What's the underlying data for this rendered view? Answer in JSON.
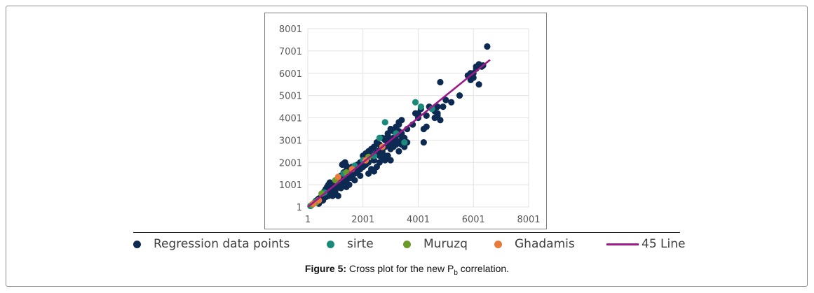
{
  "chart_data": {
    "type": "scatter",
    "xlim": [
      1,
      8001
    ],
    "ylim": [
      1,
      8001
    ],
    "x_ticks": [
      "1",
      "2001",
      "4001",
      "6001",
      "8001"
    ],
    "y_ticks": [
      "1",
      "1001",
      "2001",
      "3001",
      "4001",
      "5001",
      "6001",
      "7001",
      "8001"
    ],
    "grid": true,
    "legend_position": "bottom",
    "series": [
      {
        "name": "Regression data points",
        "color": "#0d2b52",
        "points": [
          [
            100,
            50
          ],
          [
            150,
            100
          ],
          [
            200,
            150
          ],
          [
            250,
            200
          ],
          [
            300,
            280
          ],
          [
            350,
            320
          ],
          [
            400,
            380
          ],
          [
            450,
            400
          ],
          [
            500,
            480
          ],
          [
            550,
            560
          ],
          [
            600,
            600
          ],
          [
            650,
            650
          ],
          [
            700,
            700
          ],
          [
            750,
            720
          ],
          [
            800,
            800
          ],
          [
            820,
            900
          ],
          [
            850,
            780
          ],
          [
            900,
            950
          ],
          [
            950,
            1000
          ],
          [
            1000,
            1050
          ],
          [
            1050,
            1000
          ],
          [
            1100,
            1100
          ],
          [
            1150,
            1150
          ],
          [
            1200,
            1200
          ],
          [
            1250,
            1250
          ],
          [
            1300,
            1300
          ],
          [
            1350,
            1350
          ],
          [
            1400,
            1400
          ],
          [
            1450,
            1500
          ],
          [
            1500,
            1550
          ],
          [
            600,
            700
          ],
          [
            650,
            800
          ],
          [
            700,
            900
          ],
          [
            750,
            1000
          ],
          [
            800,
            1100
          ],
          [
            900,
            800
          ],
          [
            950,
            850
          ],
          [
            1000,
            800
          ],
          [
            1100,
            900
          ],
          [
            1200,
            1000
          ],
          [
            700,
            550
          ],
          [
            800,
            600
          ],
          [
            900,
            700
          ],
          [
            1000,
            750
          ],
          [
            1200,
            850
          ],
          [
            1300,
            1100
          ],
          [
            1400,
            1200
          ],
          [
            1500,
            1300
          ],
          [
            1600,
            1400
          ],
          [
            1700,
            1500
          ],
          [
            1100,
            1300
          ],
          [
            1200,
            1400
          ],
          [
            1300,
            1550
          ],
          [
            1400,
            1650
          ],
          [
            1500,
            1700
          ],
          [
            1600,
            1800
          ],
          [
            1700,
            1850
          ],
          [
            1800,
            1900
          ],
          [
            1900,
            2000
          ],
          [
            2000,
            2100
          ],
          [
            1250,
            1900
          ],
          [
            1300,
            1950
          ],
          [
            1350,
            2000
          ],
          [
            1400,
            1850
          ],
          [
            1650,
            1600
          ],
          [
            1750,
            1650
          ],
          [
            1850,
            1750
          ],
          [
            1950,
            1850
          ],
          [
            2050,
            1950
          ],
          [
            2150,
            2050
          ],
          [
            2100,
            2200
          ],
          [
            2200,
            2250
          ],
          [
            2300,
            2300
          ],
          [
            2400,
            2350
          ],
          [
            2500,
            2450
          ],
          [
            2600,
            2550
          ],
          [
            2700,
            2600
          ],
          [
            2800,
            2700
          ],
          [
            2900,
            2800
          ],
          [
            3000,
            2900
          ],
          [
            2000,
            2300
          ],
          [
            2100,
            2400
          ],
          [
            2200,
            2500
          ],
          [
            2300,
            2600
          ],
          [
            2400,
            2700
          ],
          [
            2500,
            2900
          ],
          [
            2600,
            2800
          ],
          [
            2700,
            3100
          ],
          [
            2800,
            3000
          ],
          [
            2900,
            3200
          ],
          [
            2000,
            1800
          ],
          [
            2100,
            1900
          ],
          [
            2200,
            1500
          ],
          [
            2300,
            1700
          ],
          [
            2400,
            1600
          ],
          [
            2500,
            1800
          ],
          [
            2600,
            2000
          ],
          [
            2700,
            2200
          ],
          [
            2800,
            2100
          ],
          [
            2900,
            2300
          ],
          [
            3000,
            2600
          ],
          [
            3100,
            2700
          ],
          [
            3200,
            2800
          ],
          [
            3300,
            2900
          ],
          [
            3400,
            3000
          ],
          [
            3500,
            3100
          ],
          [
            3100,
            3100
          ],
          [
            3200,
            3300
          ],
          [
            3300,
            3400
          ],
          [
            3400,
            3300
          ],
          [
            3000,
            3500
          ],
          [
            3100,
            3400
          ],
          [
            3200,
            3600
          ],
          [
            3300,
            3800
          ],
          [
            3400,
            3900
          ],
          [
            2900,
            3300
          ],
          [
            3600,
            3500
          ],
          [
            3800,
            3700
          ],
          [
            3900,
            4200
          ],
          [
            4000,
            4000
          ],
          [
            2600,
            2400
          ],
          [
            2700,
            2500
          ],
          [
            2800,
            2300
          ],
          [
            3000,
            2100
          ],
          [
            3300,
            2500
          ],
          [
            3400,
            2800
          ],
          [
            3500,
            2700
          ],
          [
            3600,
            2900
          ],
          [
            3300,
            3700
          ],
          [
            3200,
            3200
          ],
          [
            4200,
            3500
          ],
          [
            4300,
            3600
          ],
          [
            4200,
            2900
          ],
          [
            4300,
            4100
          ],
          [
            4500,
            4400
          ],
          [
            4600,
            4000
          ],
          [
            4700,
            4100
          ],
          [
            4800,
            3900
          ],
          [
            4900,
            4500
          ],
          [
            5000,
            4800
          ],
          [
            4700,
            4500
          ],
          [
            4800,
            5600
          ],
          [
            5200,
            4700
          ],
          [
            5500,
            5000
          ],
          [
            5800,
            5900
          ],
          [
            5900,
            6000
          ],
          [
            6000,
            5800
          ],
          [
            6100,
            6300
          ],
          [
            6200,
            6400
          ],
          [
            6300,
            6300
          ],
          [
            5900,
            5700
          ],
          [
            6000,
            6000
          ],
          [
            6100,
            6200
          ],
          [
            6200,
            5500
          ],
          [
            6350,
            6350
          ],
          [
            6500,
            7200
          ],
          [
            5800,
            5900
          ],
          [
            1000,
            600
          ],
          [
            1100,
            500
          ],
          [
            900,
            500
          ],
          [
            400,
            150
          ],
          [
            450,
            250
          ],
          [
            500,
            350
          ],
          [
            550,
            300
          ],
          [
            650,
            450
          ],
          [
            750,
            500
          ],
          [
            850,
            600
          ],
          [
            950,
            700
          ],
          [
            1050,
            900
          ],
          [
            1150,
            950
          ],
          [
            1600,
            1300
          ],
          [
            1800,
            1600
          ],
          [
            1900,
            1700
          ],
          [
            2000,
            1950
          ],
          [
            2200,
            2000
          ],
          [
            2400,
            2100
          ],
          [
            2600,
            2300
          ],
          [
            3000,
            3000
          ],
          [
            3200,
            3000
          ],
          [
            3400,
            3200
          ],
          [
            4000,
            4200
          ],
          [
            4100,
            4400
          ],
          [
            4400,
            4500
          ],
          [
            4600,
            4300
          ],
          [
            4700,
            4200
          ],
          [
            1300,
            1000
          ],
          [
            1500,
            1000
          ],
          [
            1400,
            900
          ],
          [
            1700,
            1200
          ],
          [
            1900,
            1400
          ]
        ]
      },
      {
        "name": "sirte",
        "color": "#1a8a7a",
        "points": [
          [
            100,
            50
          ],
          [
            300,
            250
          ],
          [
            600,
            650
          ],
          [
            1300,
            1500
          ],
          [
            1700,
            1850
          ],
          [
            2000,
            2100
          ],
          [
            2400,
            2300
          ],
          [
            2600,
            3100
          ],
          [
            2800,
            3800
          ],
          [
            3200,
            3300
          ],
          [
            3500,
            2900
          ],
          [
            3900,
            4700
          ],
          [
            4100,
            4500
          ],
          [
            4500,
            4400
          ]
        ]
      },
      {
        "name": "Muruzq",
        "color": "#6a9a2a",
        "points": [
          [
            150,
            100
          ],
          [
            300,
            200
          ],
          [
            500,
            600
          ],
          [
            1000,
            1200
          ],
          [
            1400,
            1550
          ],
          [
            2200,
            2250
          ]
        ]
      },
      {
        "name": "Ghadamis",
        "color": "#e87a3a",
        "points": [
          [
            200,
            150
          ],
          [
            400,
            300
          ],
          [
            1100,
            1350
          ],
          [
            1600,
            1700
          ],
          [
            2100,
            2100
          ],
          [
            2700,
            2700
          ]
        ]
      },
      {
        "name": "45 Line",
        "color": "#9c1a8a",
        "line": true,
        "points": [
          [
            1,
            1
          ],
          [
            6601,
            6601
          ]
        ]
      }
    ]
  },
  "caption": {
    "label": "Figure 5:",
    "text_before": " Cross plot for the new P",
    "sub": "b",
    "text_after": " correlation."
  }
}
